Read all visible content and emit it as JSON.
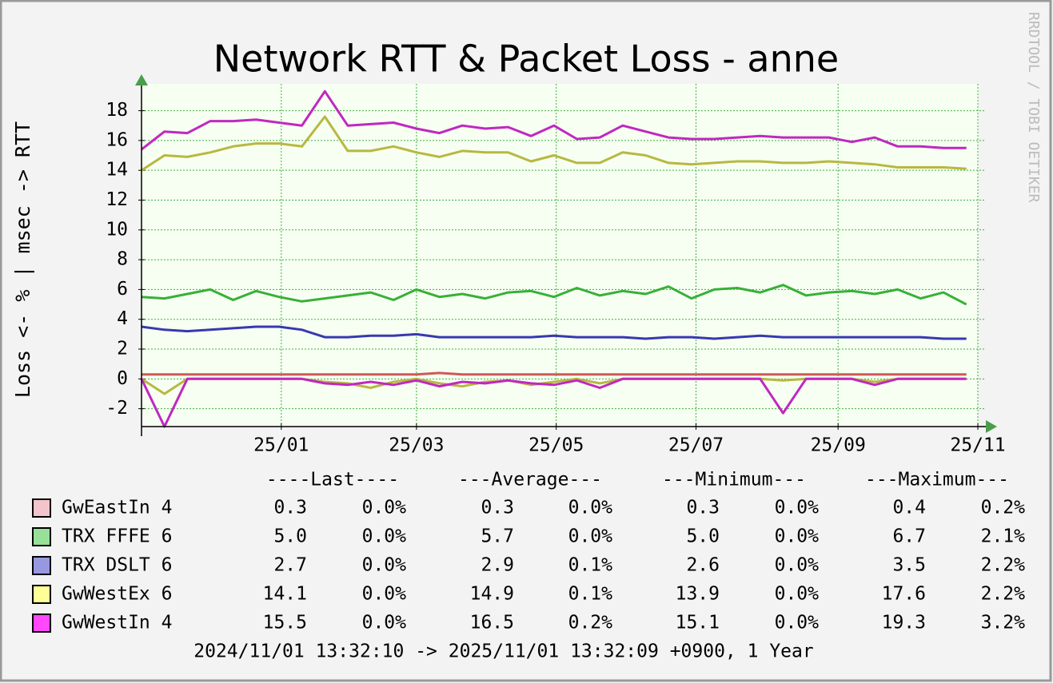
{
  "chart_data": {
    "type": "line",
    "title": "Network RTT & Packet Loss - anne",
    "y_label": "Loss <- % | msec -> RTT",
    "watermark": "RRDTOOL / TOBI OETIKER",
    "footer": "2024/11/01 13:32:10 -> 2025/11/01 13:32:09 +0900, 1 Year",
    "stat_headers": [
      "----Last----",
      "---Average---",
      "---Minimum---",
      "---Maximum---"
    ],
    "grid": true,
    "xlim": [
      0,
      365
    ],
    "xticks": [
      {
        "value": 61,
        "label": "25/01"
      },
      {
        "value": 120,
        "label": "25/03"
      },
      {
        "value": 181,
        "label": "25/05"
      },
      {
        "value": 242,
        "label": "25/07"
      },
      {
        "value": 304,
        "label": "25/09"
      },
      {
        "value": 365,
        "label": "25/11"
      }
    ],
    "ylim": [
      -3.2,
      19.8
    ],
    "yticks": [
      -2,
      0,
      2,
      4,
      6,
      8,
      10,
      12,
      14,
      16,
      18
    ],
    "x": [
      0,
      10,
      20,
      30,
      40,
      50,
      60,
      70,
      80,
      90,
      100,
      110,
      120,
      130,
      140,
      150,
      160,
      170,
      180,
      190,
      200,
      210,
      220,
      230,
      240,
      250,
      260,
      270,
      280,
      290,
      300,
      310,
      320,
      330,
      340,
      350,
      360
    ],
    "series": [
      {
        "name": "GwEastIn 4",
        "color": "#d05858",
        "legend_color": "#f4c4cc",
        "values": [
          0.3,
          0.3,
          0.3,
          0.3,
          0.3,
          0.3,
          0.3,
          0.3,
          0.3,
          0.3,
          0.3,
          0.3,
          0.3,
          0.4,
          0.3,
          0.3,
          0.3,
          0.3,
          0.3,
          0.3,
          0.3,
          0.3,
          0.3,
          0.3,
          0.3,
          0.3,
          0.3,
          0.3,
          0.3,
          0.3,
          0.3,
          0.3,
          0.3,
          0.3,
          0.3,
          0.3,
          0.3
        ],
        "stats": [
          "0.3",
          "0.0%",
          "0.3",
          "0.0%",
          "0.3",
          "0.0%",
          "0.4",
          "0.2%"
        ]
      },
      {
        "name": "TRX FFFE 6",
        "color": "#38b038",
        "legend_color": "#98e098",
        "values": [
          5.5,
          5.4,
          5.7,
          6.0,
          5.3,
          5.9,
          5.5,
          5.2,
          5.4,
          5.6,
          5.8,
          5.3,
          6.0,
          5.5,
          5.7,
          5.4,
          5.8,
          5.9,
          5.5,
          6.1,
          5.6,
          5.9,
          5.7,
          6.2,
          5.4,
          6.0,
          6.1,
          5.8,
          6.3,
          5.6,
          5.8,
          5.9,
          5.7,
          6.0,
          5.4,
          5.8,
          5.0
        ],
        "stats": [
          "5.0",
          "0.0%",
          "5.7",
          "0.0%",
          "5.0",
          "0.0%",
          "6.7",
          "2.1%"
        ]
      },
      {
        "name": "TRX DSLT 6",
        "color": "#3838b0",
        "legend_color": "#9898e0",
        "values": [
          3.5,
          3.3,
          3.2,
          3.3,
          3.4,
          3.5,
          3.5,
          3.3,
          2.8,
          2.8,
          2.9,
          2.9,
          3.0,
          2.8,
          2.8,
          2.8,
          2.8,
          2.8,
          2.9,
          2.8,
          2.8,
          2.8,
          2.7,
          2.8,
          2.8,
          2.7,
          2.8,
          2.9,
          2.8,
          2.8,
          2.8,
          2.8,
          2.8,
          2.8,
          2.8,
          2.7,
          2.7
        ],
        "stats": [
          "2.7",
          "0.0%",
          "2.9",
          "0.1%",
          "2.6",
          "0.0%",
          "3.5",
          "2.2%"
        ]
      },
      {
        "name": "GwWestEx 6",
        "color": "#b8b840",
        "legend_color": "#ffff98",
        "values": [
          14.0,
          15.0,
          14.9,
          15.2,
          15.6,
          15.8,
          15.8,
          15.6,
          17.6,
          15.3,
          15.3,
          15.6,
          15.2,
          14.9,
          15.3,
          15.2,
          15.2,
          14.6,
          15.0,
          14.5,
          14.5,
          15.2,
          15.0,
          14.5,
          14.4,
          14.5,
          14.6,
          14.6,
          14.5,
          14.5,
          14.6,
          14.5,
          14.4,
          14.2,
          14.2,
          14.2,
          14.1
        ],
        "loss": [
          0,
          -1.0,
          0,
          0,
          0,
          0,
          0,
          0,
          -0.2,
          -0.3,
          -0.6,
          -0.2,
          0,
          -0.3,
          -0.5,
          -0.2,
          -0.1,
          -0.4,
          -0.2,
          0,
          -0.3,
          0,
          0,
          0,
          0,
          0,
          0,
          0,
          -0.1,
          0,
          0,
          0,
          -0.2,
          0,
          0,
          0,
          0
        ],
        "stats": [
          "14.1",
          "0.0%",
          "14.9",
          "0.1%",
          "13.9",
          "0.0%",
          "17.6",
          "2.2%"
        ]
      },
      {
        "name": "GwWestIn 4",
        "color": "#c028c0",
        "legend_color": "#ff48ff",
        "values": [
          15.4,
          16.6,
          16.5,
          17.3,
          17.3,
          17.4,
          17.2,
          17.0,
          19.3,
          17.0,
          17.1,
          17.2,
          16.8,
          16.5,
          17.0,
          16.8,
          16.9,
          16.3,
          17.0,
          16.1,
          16.2,
          17.0,
          16.6,
          16.2,
          16.1,
          16.1,
          16.2,
          16.3,
          16.2,
          16.2,
          16.2,
          15.9,
          16.2,
          15.6,
          15.6,
          15.5,
          15.5
        ],
        "loss": [
          0,
          -3.2,
          0,
          0,
          0,
          0,
          0,
          0,
          -0.3,
          -0.4,
          -0.2,
          -0.4,
          -0.1,
          -0.5,
          -0.2,
          -0.3,
          -0.1,
          -0.3,
          -0.4,
          -0.1,
          -0.6,
          0,
          0,
          0,
          0,
          0,
          0,
          0,
          -2.3,
          0,
          0,
          0,
          -0.4,
          0,
          0,
          0,
          0
        ],
        "stats": [
          "15.5",
          "0.0%",
          "16.5",
          "0.2%",
          "15.1",
          "0.0%",
          "19.3",
          "3.2%"
        ]
      }
    ]
  }
}
